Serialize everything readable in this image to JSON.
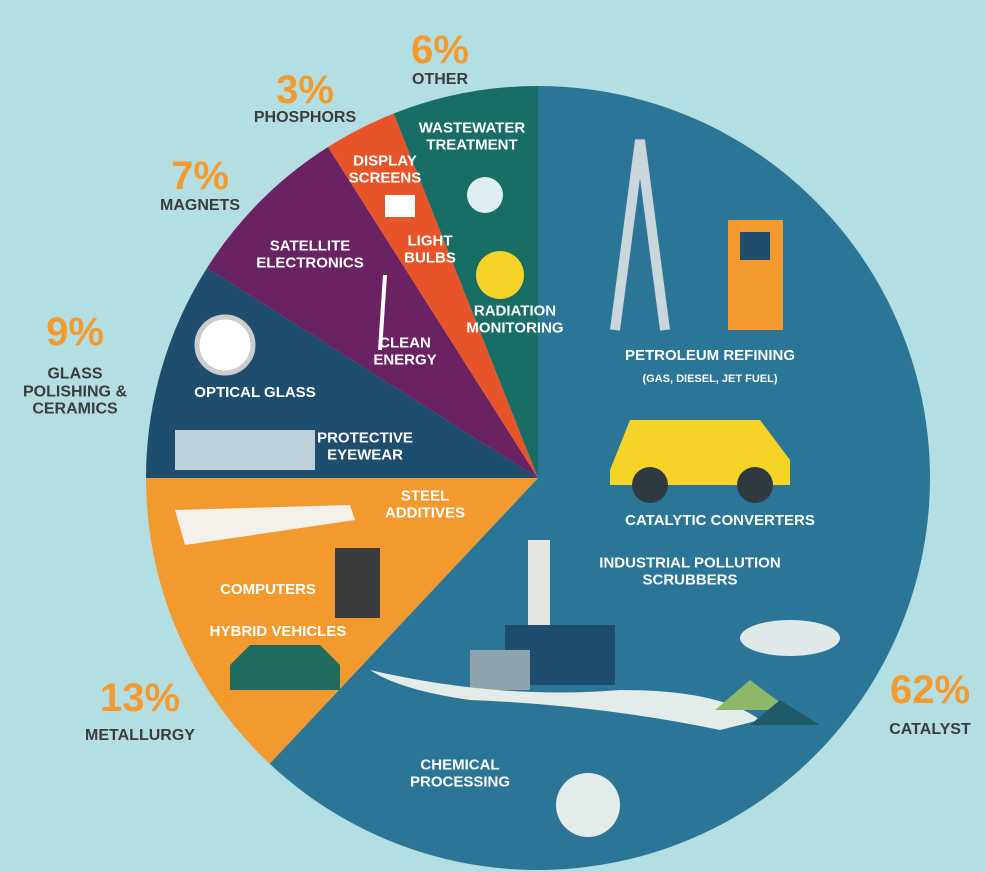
{
  "chart_data": {
    "type": "pie",
    "categories": [
      "CATALYST",
      "METALLURGY",
      "GLASS POLISHING & CERAMICS",
      "MAGNETS",
      "PHOSPHORS",
      "OTHER"
    ],
    "values": [
      62,
      13,
      9,
      7,
      3,
      6
    ],
    "value_labels": [
      "62%",
      "13%",
      "9%",
      "7%",
      "3%",
      "6%"
    ],
    "colors": [
      "#2b7597",
      "#f39a2f",
      "#1e4d6d",
      "#6a2262",
      "#e8542a",
      "#186d64"
    ],
    "annotations": [
      [
        "PETROLEUM REFINING",
        "(GAS, DIESEL, JET FUEL)",
        "CATALYTIC CONVERTERS",
        "INDUSTRIAL POLLUTION SCRUBBERS",
        "CHEMICAL PROCESSING"
      ],
      [
        "STEEL ADDITIVES",
        "COMPUTERS",
        "HYBRID VEHICLES"
      ],
      [
        "OPTICAL GLASS",
        "PROTECTIVE EYEWEAR"
      ],
      [
        "SATELLITE ELECTRONICS",
        "CLEAN ENERGY"
      ],
      [
        "DISPLAY SCREENS",
        "LIGHT BULBS"
      ],
      [
        "WASTEWATER TREATMENT",
        "RADIATION MONITORING"
      ]
    ]
  }
}
